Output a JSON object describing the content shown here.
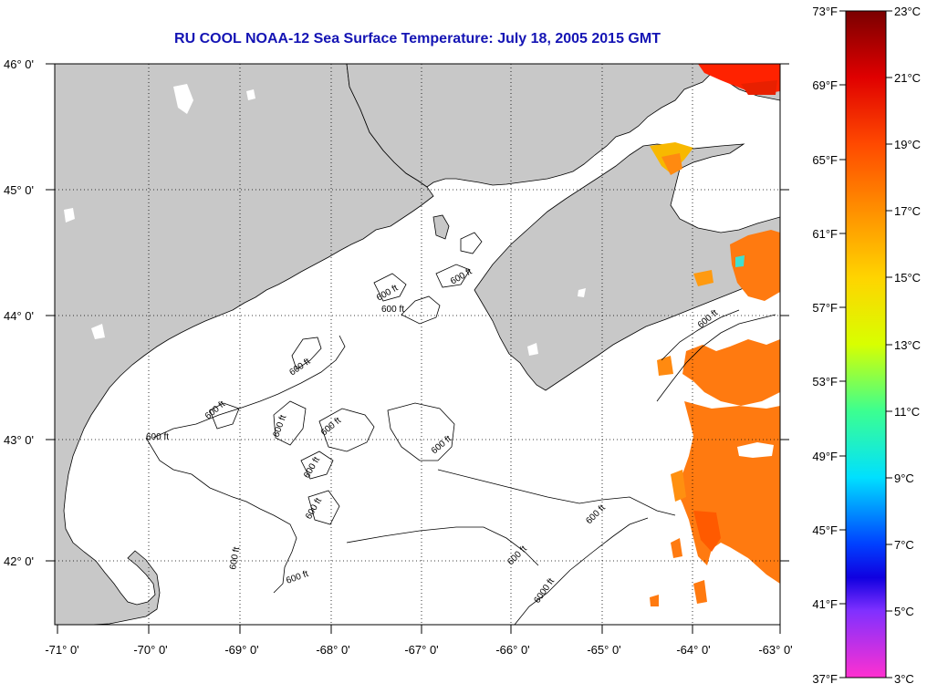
{
  "title": "RU COOL  NOAA-12  Sea Surface Temperature:  July 18, 2005 2015 GMT",
  "map": {
    "lat_labels": [
      "46° 0'",
      "45° 0'",
      "44° 0'",
      "43° 0'",
      "42° 0'"
    ],
    "lon_labels": [
      "-71° 0'",
      "-70° 0'",
      "-69° 0'",
      "-68° 0'",
      "-67° 0'",
      "-66° 0'",
      "-65° 0'",
      "-64° 0'",
      "-63° 0'"
    ],
    "contour_labels": [
      "600 ft",
      "600 ft",
      "600 ft",
      "600 ft",
      "600 ft",
      "600 ft",
      "600 ft",
      "600 ft",
      "600 ft",
      "600 ft",
      "600 ft",
      "600 ft",
      "600 ft",
      "600 ft",
      "600 ft",
      "600 ft",
      "6000 ft"
    ],
    "colors": {
      "land": "#c8c8c8",
      "water": "#ffffff",
      "sst_warm": "#ff7a10",
      "sst_hot": "#ff2200"
    }
  },
  "colorbar": {
    "fahrenheit": [
      "73°F",
      "69°F",
      "65°F",
      "61°F",
      "57°F",
      "53°F",
      "49°F",
      "45°F",
      "41°F",
      "37°F"
    ],
    "celsius": [
      "23°C",
      "21°C",
      "19°C",
      "17°C",
      "15°C",
      "13°C",
      "11°C",
      "9°C",
      "7°C",
      "5°C",
      "3°C"
    ]
  }
}
